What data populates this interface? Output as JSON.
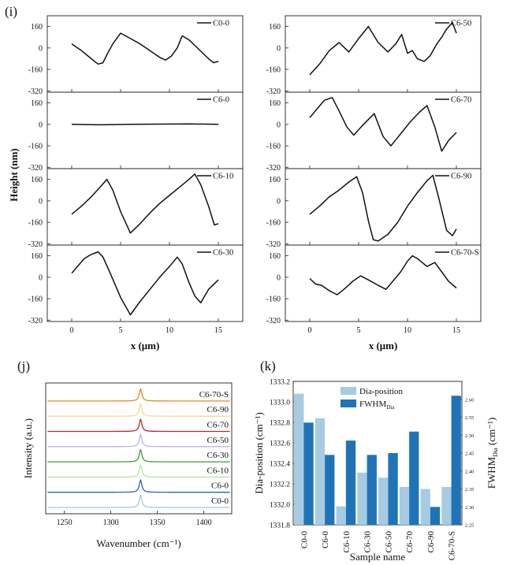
{
  "panel_labels": {
    "i": "(i)",
    "j": "(j)",
    "k": "(k)"
  },
  "chart_data": [
    {
      "type": "line",
      "panel": "(i)",
      "ylabel": "Height (nm)",
      "xlabel": "x (μm)",
      "x_ticks": [
        "0",
        "5",
        "10",
        "15"
      ],
      "y_ticks": [
        "160",
        "0",
        "-160",
        "-320"
      ],
      "xlim": [
        -2.5,
        17.5
      ],
      "ylim": [
        -330,
        240
      ],
      "columns": [
        {
          "rows": [
            {
              "name": "C0-0",
              "x": [
                0,
                1,
                2,
                2.7,
                3.2,
                3.6,
                4.2,
                5,
                6,
                7,
                8,
                9,
                9.6,
                10.2,
                10.8,
                11.3,
                12,
                13,
                14,
                14.5,
                15
              ],
              "y": [
                30,
                -20,
                -80,
                -120,
                -110,
                -50,
                30,
                110,
                70,
                30,
                -20,
                -70,
                -90,
                -60,
                0,
                90,
                60,
                -10,
                -80,
                -110,
                -100
              ]
            },
            {
              "name": "C6-0",
              "x": [
                0,
                3,
                6,
                9,
                12,
                15
              ],
              "y": [
                0,
                -3,
                0,
                2,
                4,
                0
              ]
            },
            {
              "name": "C6-10",
              "x": [
                0,
                1,
                2,
                3,
                3.6,
                4.2,
                5,
                6,
                7,
                8,
                9,
                10,
                11,
                12,
                12.6,
                13.2,
                14,
                14.6,
                15
              ],
              "y": [
                -100,
                -40,
                30,
                110,
                160,
                80,
                -80,
                -240,
                -170,
                -90,
                -20,
                40,
                100,
                160,
                200,
                120,
                -40,
                -180,
                -170
              ]
            },
            {
              "name": "C6-30",
              "x": [
                0,
                0.7,
                1.3,
                2,
                2.7,
                3.2,
                4,
                5,
                6,
                7,
                8,
                9,
                10,
                10.8,
                11.3,
                12,
                12.6,
                13.2,
                14,
                15
              ],
              "y": [
                30,
                90,
                140,
                170,
                190,
                150,
                20,
                -150,
                -280,
                -180,
                -90,
                0,
                80,
                150,
                100,
                -40,
                -140,
                -190,
                -90,
                -20
              ]
            }
          ]
        },
        {
          "rows": [
            {
              "name": "C6-50",
              "x": [
                0,
                1,
                2,
                3,
                4,
                5,
                6,
                7,
                8,
                8.8,
                9.4,
                10,
                10.5,
                11,
                11.7,
                12.3,
                13,
                13.5,
                14,
                14.6,
                15
              ],
              "y": [
                -200,
                -120,
                -20,
                40,
                -30,
                70,
                160,
                40,
                -30,
                30,
                100,
                -40,
                -20,
                -80,
                -100,
                -60,
                30,
                80,
                140,
                190,
                110
              ]
            },
            {
              "name": "C6-70",
              "x": [
                0,
                0.8,
                1.5,
                2.3,
                3,
                3.8,
                4.5,
                5.5,
                6.6,
                7.5,
                8.3,
                9.3,
                10.3,
                11.2,
                12,
                12.8,
                13.5,
                14.2,
                15
              ],
              "y": [
                50,
                120,
                180,
                200,
                100,
                -20,
                -80,
                0,
                80,
                -90,
                -160,
                -70,
                20,
                90,
                140,
                -20,
                -200,
                -120,
                -60
              ]
            },
            {
              "name": "C6-90",
              "x": [
                0,
                1,
                2,
                3,
                4,
                4.8,
                5.4,
                6,
                6.5,
                7,
                8,
                9,
                10,
                11,
                12,
                12.6,
                13.2,
                14,
                14.6,
                15
              ],
              "y": [
                -100,
                -40,
                30,
                80,
                140,
                180,
                60,
                -150,
                -290,
                -300,
                -250,
                -160,
                -40,
                60,
                150,
                190,
                20,
                -220,
                -260,
                -210
              ]
            },
            {
              "name": "C6-70-S",
              "x": [
                0,
                0.6,
                1.2,
                2,
                2.8,
                3.5,
                4.4,
                5.2,
                6,
                7,
                7.8,
                8.5,
                9.3,
                10,
                10.5,
                11,
                12,
                12.8,
                13.5,
                14.2,
                15
              ],
              "y": [
                -10,
                -50,
                -60,
                -100,
                -130,
                -90,
                -30,
                10,
                -20,
                -60,
                -90,
                -30,
                40,
                120,
                160,
                140,
                80,
                110,
                40,
                -30,
                -80
              ]
            }
          ]
        }
      ]
    },
    {
      "type": "line",
      "panel": "(j)",
      "xlabel": "Wavenumber (cm⁻¹)",
      "ylabel": "Intensity (a.u.)",
      "x_ticks": [
        1250,
        1300,
        1350,
        1400
      ],
      "xlim": [
        1230,
        1430
      ],
      "peak_x": 1332,
      "series": [
        {
          "name": "C0-0",
          "color": "#a9c7d6"
        },
        {
          "name": "C6-0",
          "color": "#2a63b6"
        },
        {
          "name": "C6-10",
          "color": "#b6e3a4"
        },
        {
          "name": "C6-30",
          "color": "#3b9e3b"
        },
        {
          "name": "C6-50",
          "color": "#b8b8e0"
        },
        {
          "name": "C6-70",
          "color": "#c0242e"
        },
        {
          "name": "C6-90",
          "color": "#f3d89a"
        },
        {
          "name": "C6-70-S",
          "color": "#e5892a"
        }
      ]
    },
    {
      "type": "bar",
      "panel": "(k)",
      "categories": [
        "C0-0",
        "C6-0",
        "C6-10",
        "C6-30",
        "C6-50",
        "C6-70",
        "C6-90",
        "C6-70-S"
      ],
      "xlabel": "Sample name",
      "ylabel": "Dia-position (cm⁻¹)",
      "y2label": "FWHM",
      "y2label_sub": "Dia",
      "y2label_unit": " (cm⁻¹)",
      "ylim": [
        1331.8,
        1333.2
      ],
      "y2lim": [
        2.25,
        2.65
      ],
      "y_ticks": [
        1331.8,
        1332.0,
        1332.2,
        1332.4,
        1332.6,
        1332.8,
        1333.0,
        1333.2
      ],
      "y2_ticks": [
        2.25,
        2.3,
        2.35,
        2.4,
        2.45,
        2.5,
        2.55,
        2.6
      ],
      "legend_position": "top-center",
      "series": [
        {
          "name": "Dia-position",
          "axis": "left",
          "color": "#a7cbe0",
          "values": [
            1333.08,
            1332.84,
            1331.98,
            1332.31,
            1332.26,
            1332.17,
            1332.15,
            1332.17
          ]
        },
        {
          "name": "FWHM",
          "name_sub": "Dia",
          "axis": "right",
          "color": "#1f74b8",
          "values": [
            2.535,
            2.445,
            2.485,
            2.445,
            2.45,
            2.51,
            2.3,
            2.61
          ]
        }
      ]
    }
  ]
}
